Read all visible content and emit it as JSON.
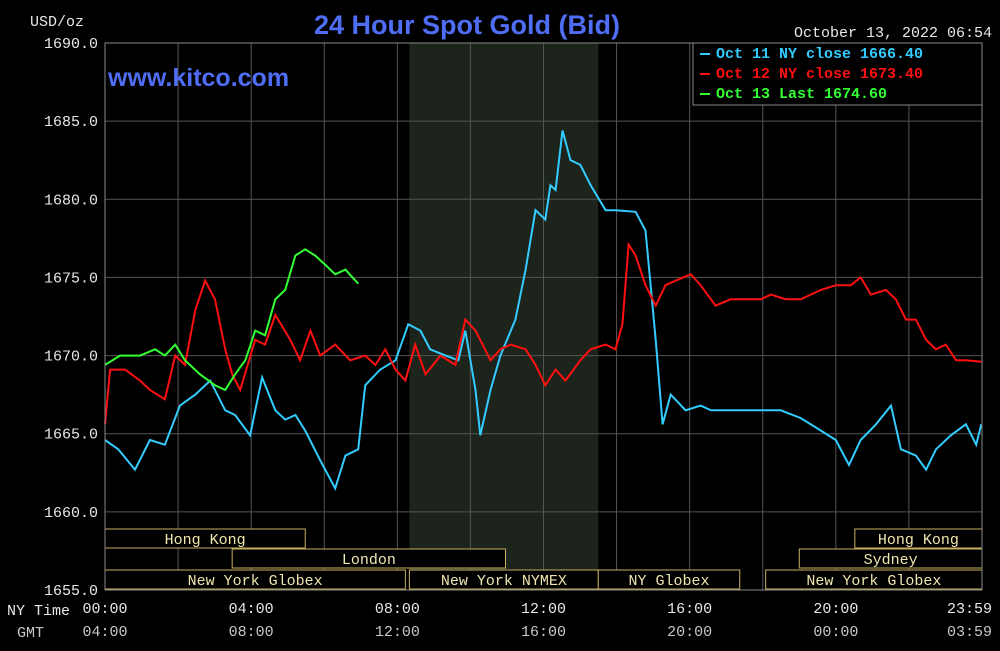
{
  "chart_data": {
    "type": "line",
    "title": "24 Hour Spot Gold (Bid)",
    "watermark": "www.kitco.com",
    "timestamp": "October 13, 2022 06:54",
    "y_label": "USD/oz",
    "x_label": "NY Time",
    "x2_label": "GMT",
    "ylim": [
      1655,
      1690
    ],
    "yticks": [
      {
        "value": 1655,
        "label": "1655.0"
      },
      {
        "value": 1660,
        "label": "1660.0"
      },
      {
        "value": 1665,
        "label": "1665.0"
      },
      {
        "value": 1670,
        "label": "1670.0"
      },
      {
        "value": 1675,
        "label": "1675.0"
      },
      {
        "value": 1680,
        "label": "1680.0"
      },
      {
        "value": 1685,
        "label": "1685.0"
      },
      {
        "value": 1690,
        "label": "1690.0"
      }
    ],
    "xlim": [
      0,
      24
    ],
    "xticks": [
      {
        "value": 0,
        "label": "00:00"
      },
      {
        "value": 4,
        "label": "04:00"
      },
      {
        "value": 8,
        "label": "08:00"
      },
      {
        "value": 12,
        "label": "12:00"
      },
      {
        "value": 16,
        "label": "16:00"
      },
      {
        "value": 20,
        "label": "20:00"
      },
      {
        "value": 23.98,
        "label": "23:59"
      }
    ],
    "x2ticks": [
      {
        "value": 0,
        "label": "04:00"
      },
      {
        "value": 4,
        "label": "08:00"
      },
      {
        "value": 8,
        "label": "12:00"
      },
      {
        "value": 12,
        "label": "16:00"
      },
      {
        "value": 16,
        "label": "20:00"
      },
      {
        "value": 20,
        "label": "00:00"
      },
      {
        "value": 23.98,
        "label": "03:59"
      }
    ],
    "xgrid": [
      0,
      2,
      4,
      6,
      8,
      10,
      12,
      14,
      16,
      18,
      20,
      22,
      24
    ],
    "grid": true,
    "shaded": [
      8.33,
      13.5
    ],
    "sessions": [
      [
        {
          "name": "Hong Kong",
          "start": 0,
          "end": 5.48
        },
        {
          "name": "Hong Kong",
          "start": 20.52,
          "end": 24
        }
      ],
      [
        {
          "name": "London",
          "start": 3.48,
          "end": 10.96
        },
        {
          "name": "Sydney",
          "start": 19.0,
          "end": 24
        }
      ],
      [
        {
          "name": "New York Globex",
          "start": 0,
          "end": 8.22
        },
        {
          "name": "New York NYMEX",
          "start": 8.33,
          "end": 13.5
        },
        {
          "name": "NY Globex",
          "start": 13.5,
          "end": 17.37
        },
        {
          "name": "New York Globex",
          "start": 18.08,
          "end": 24
        }
      ]
    ],
    "series": [
      {
        "name": "Oct 11 NY close 1666.40",
        "color": "#33ccff",
        "x": [
          0,
          0.36,
          0.82,
          1.23,
          1.64,
          2.05,
          2.47,
          2.88,
          3.29,
          3.56,
          3.97,
          4.3,
          4.66,
          4.93,
          5.21,
          5.48,
          5.89,
          6.3,
          6.58,
          6.93,
          7.12,
          7.53,
          7.95,
          8.3,
          8.63,
          8.9,
          9.32,
          9.67,
          9.86,
          10.14,
          10.27,
          10.55,
          10.82,
          11.23,
          11.51,
          11.78,
          12.05,
          12.19,
          12.33,
          12.52,
          12.74,
          13.01,
          13.29,
          13.7,
          13.97,
          14.52,
          14.79,
          15.07,
          15.26,
          15.48,
          15.89,
          16.3,
          16.58,
          17.12,
          17.95,
          18.49,
          19.04,
          19.59,
          20.0,
          20.36,
          20.68,
          21.1,
          21.51,
          21.78,
          22.19,
          22.47,
          22.74,
          23.15,
          23.56,
          23.84,
          23.98
        ],
        "values": [
          1664.6,
          1664.0,
          1662.7,
          1664.6,
          1664.3,
          1666.8,
          1667.5,
          1668.4,
          1666.5,
          1666.2,
          1664.9,
          1668.6,
          1666.5,
          1665.9,
          1666.2,
          1665.2,
          1663.3,
          1661.5,
          1663.6,
          1664.0,
          1668.1,
          1669.1,
          1669.7,
          1672.0,
          1671.6,
          1670.4,
          1670.0,
          1669.7,
          1671.6,
          1667.8,
          1664.9,
          1667.8,
          1670.0,
          1672.3,
          1675.5,
          1679.3,
          1678.7,
          1680.9,
          1680.6,
          1684.4,
          1682.5,
          1682.2,
          1680.9,
          1679.3,
          1679.3,
          1679.2,
          1678.0,
          1671.0,
          1665.6,
          1667.5,
          1666.5,
          1666.8,
          1666.5,
          1666.5,
          1666.5,
          1666.5,
          1666.0,
          1665.2,
          1664.6,
          1663.0,
          1664.6,
          1665.6,
          1666.8,
          1664.0,
          1663.6,
          1662.7,
          1664.0,
          1664.9,
          1665.6,
          1664.3,
          1665.6
        ]
      },
      {
        "name": "Oct 12 NY close 1673.40",
        "color": "#ff1010",
        "x": [
          0,
          0.14,
          0.55,
          0.96,
          1.23,
          1.64,
          1.92,
          2.19,
          2.47,
          2.74,
          3.01,
          3.29,
          3.48,
          3.7,
          4.11,
          4.38,
          4.66,
          5.07,
          5.34,
          5.62,
          5.89,
          6.3,
          6.71,
          7.12,
          7.4,
          7.67,
          7.95,
          8.22,
          8.49,
          8.77,
          9.18,
          9.59,
          9.86,
          10.14,
          10.55,
          10.82,
          11.1,
          11.51,
          11.78,
          12.05,
          12.33,
          12.6,
          13.01,
          13.29,
          13.7,
          13.97,
          14.16,
          14.33,
          14.52,
          14.79,
          15.07,
          15.34,
          15.62,
          16.03,
          16.3,
          16.71,
          17.12,
          17.95,
          18.22,
          18.63,
          19.04,
          19.59,
          20.0,
          20.41,
          20.68,
          20.96,
          21.37,
          21.64,
          21.92,
          22.19,
          22.47,
          22.74,
          23.01,
          23.29,
          23.56,
          23.98
        ],
        "values": [
          1665.6,
          1669.1,
          1669.1,
          1668.4,
          1667.8,
          1667.2,
          1670.0,
          1669.4,
          1672.9,
          1674.8,
          1673.6,
          1670.4,
          1668.8,
          1667.8,
          1671.0,
          1670.7,
          1672.6,
          1671.0,
          1669.7,
          1671.6,
          1670.0,
          1670.7,
          1669.7,
          1670.0,
          1669.4,
          1670.4,
          1669.1,
          1668.4,
          1670.7,
          1668.8,
          1670.0,
          1669.4,
          1672.3,
          1671.6,
          1669.7,
          1670.4,
          1670.7,
          1670.4,
          1669.4,
          1668.1,
          1669.1,
          1668.4,
          1669.7,
          1670.4,
          1670.7,
          1670.4,
          1672.0,
          1677.1,
          1676.4,
          1674.5,
          1673.2,
          1674.5,
          1674.8,
          1675.2,
          1674.5,
          1673.2,
          1673.6,
          1673.6,
          1673.9,
          1673.6,
          1673.6,
          1674.2,
          1674.5,
          1674.5,
          1675.0,
          1673.9,
          1674.2,
          1673.6,
          1672.3,
          1672.3,
          1671.0,
          1670.4,
          1670.7,
          1669.7,
          1669.7,
          1669.6
        ]
      },
      {
        "name": "Oct 13 Last 1674.60",
        "color": "#33ff33",
        "x": [
          0,
          0.41,
          0.96,
          1.37,
          1.64,
          1.92,
          2.19,
          2.6,
          3.01,
          3.29,
          3.56,
          3.84,
          4.11,
          4.38,
          4.66,
          4.93,
          5.21,
          5.48,
          5.75,
          6.03,
          6.3,
          6.58,
          6.93
        ],
        "values": [
          1669.4,
          1670.0,
          1670.0,
          1670.4,
          1670.0,
          1670.7,
          1669.7,
          1668.8,
          1668.1,
          1667.8,
          1668.8,
          1669.7,
          1671.6,
          1671.3,
          1673.6,
          1674.2,
          1676.4,
          1676.8,
          1676.4,
          1675.8,
          1675.2,
          1675.5,
          1674.6
        ]
      }
    ]
  }
}
